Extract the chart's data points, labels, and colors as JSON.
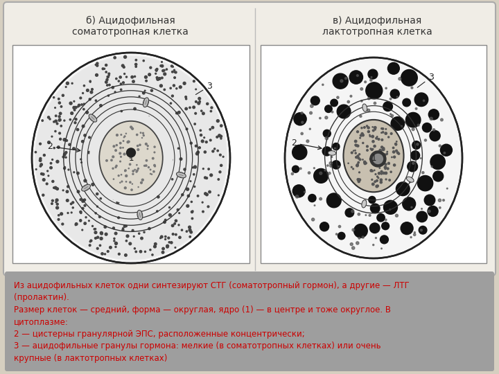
{
  "bg_color": "#d6cfc0",
  "panel_bg": "#ede8e0",
  "white_bg": "#ffffff",
  "text_box_bg": "#a8a8a8",
  "title_left": "б) Ацидофильная\nсоматотропная клетка",
  "title_right": "в) Ацидофильная\nлактотропная клетка",
  "description": "Из ацидофильных клеток одни синтезируют СТГ (соматотропный гормон), а другие — ЛТГ\n(пролактин).\nРазмер клеток — средний, форма — округлая, ядро (1) — в центре и тоже округлое. В\nцитоплазме:\n2 — цистерны гранулярной ЭПС, расположенные концентрически;\n3 — ацидофильные гранулы гормона: мелкие (в соматотропных клетках) или очень\nкрупные (в лактотропных клетках)",
  "font_size_title": 10,
  "font_size_desc": 8.5,
  "text_color_desc": "#cc0000",
  "label_color": "#333333"
}
